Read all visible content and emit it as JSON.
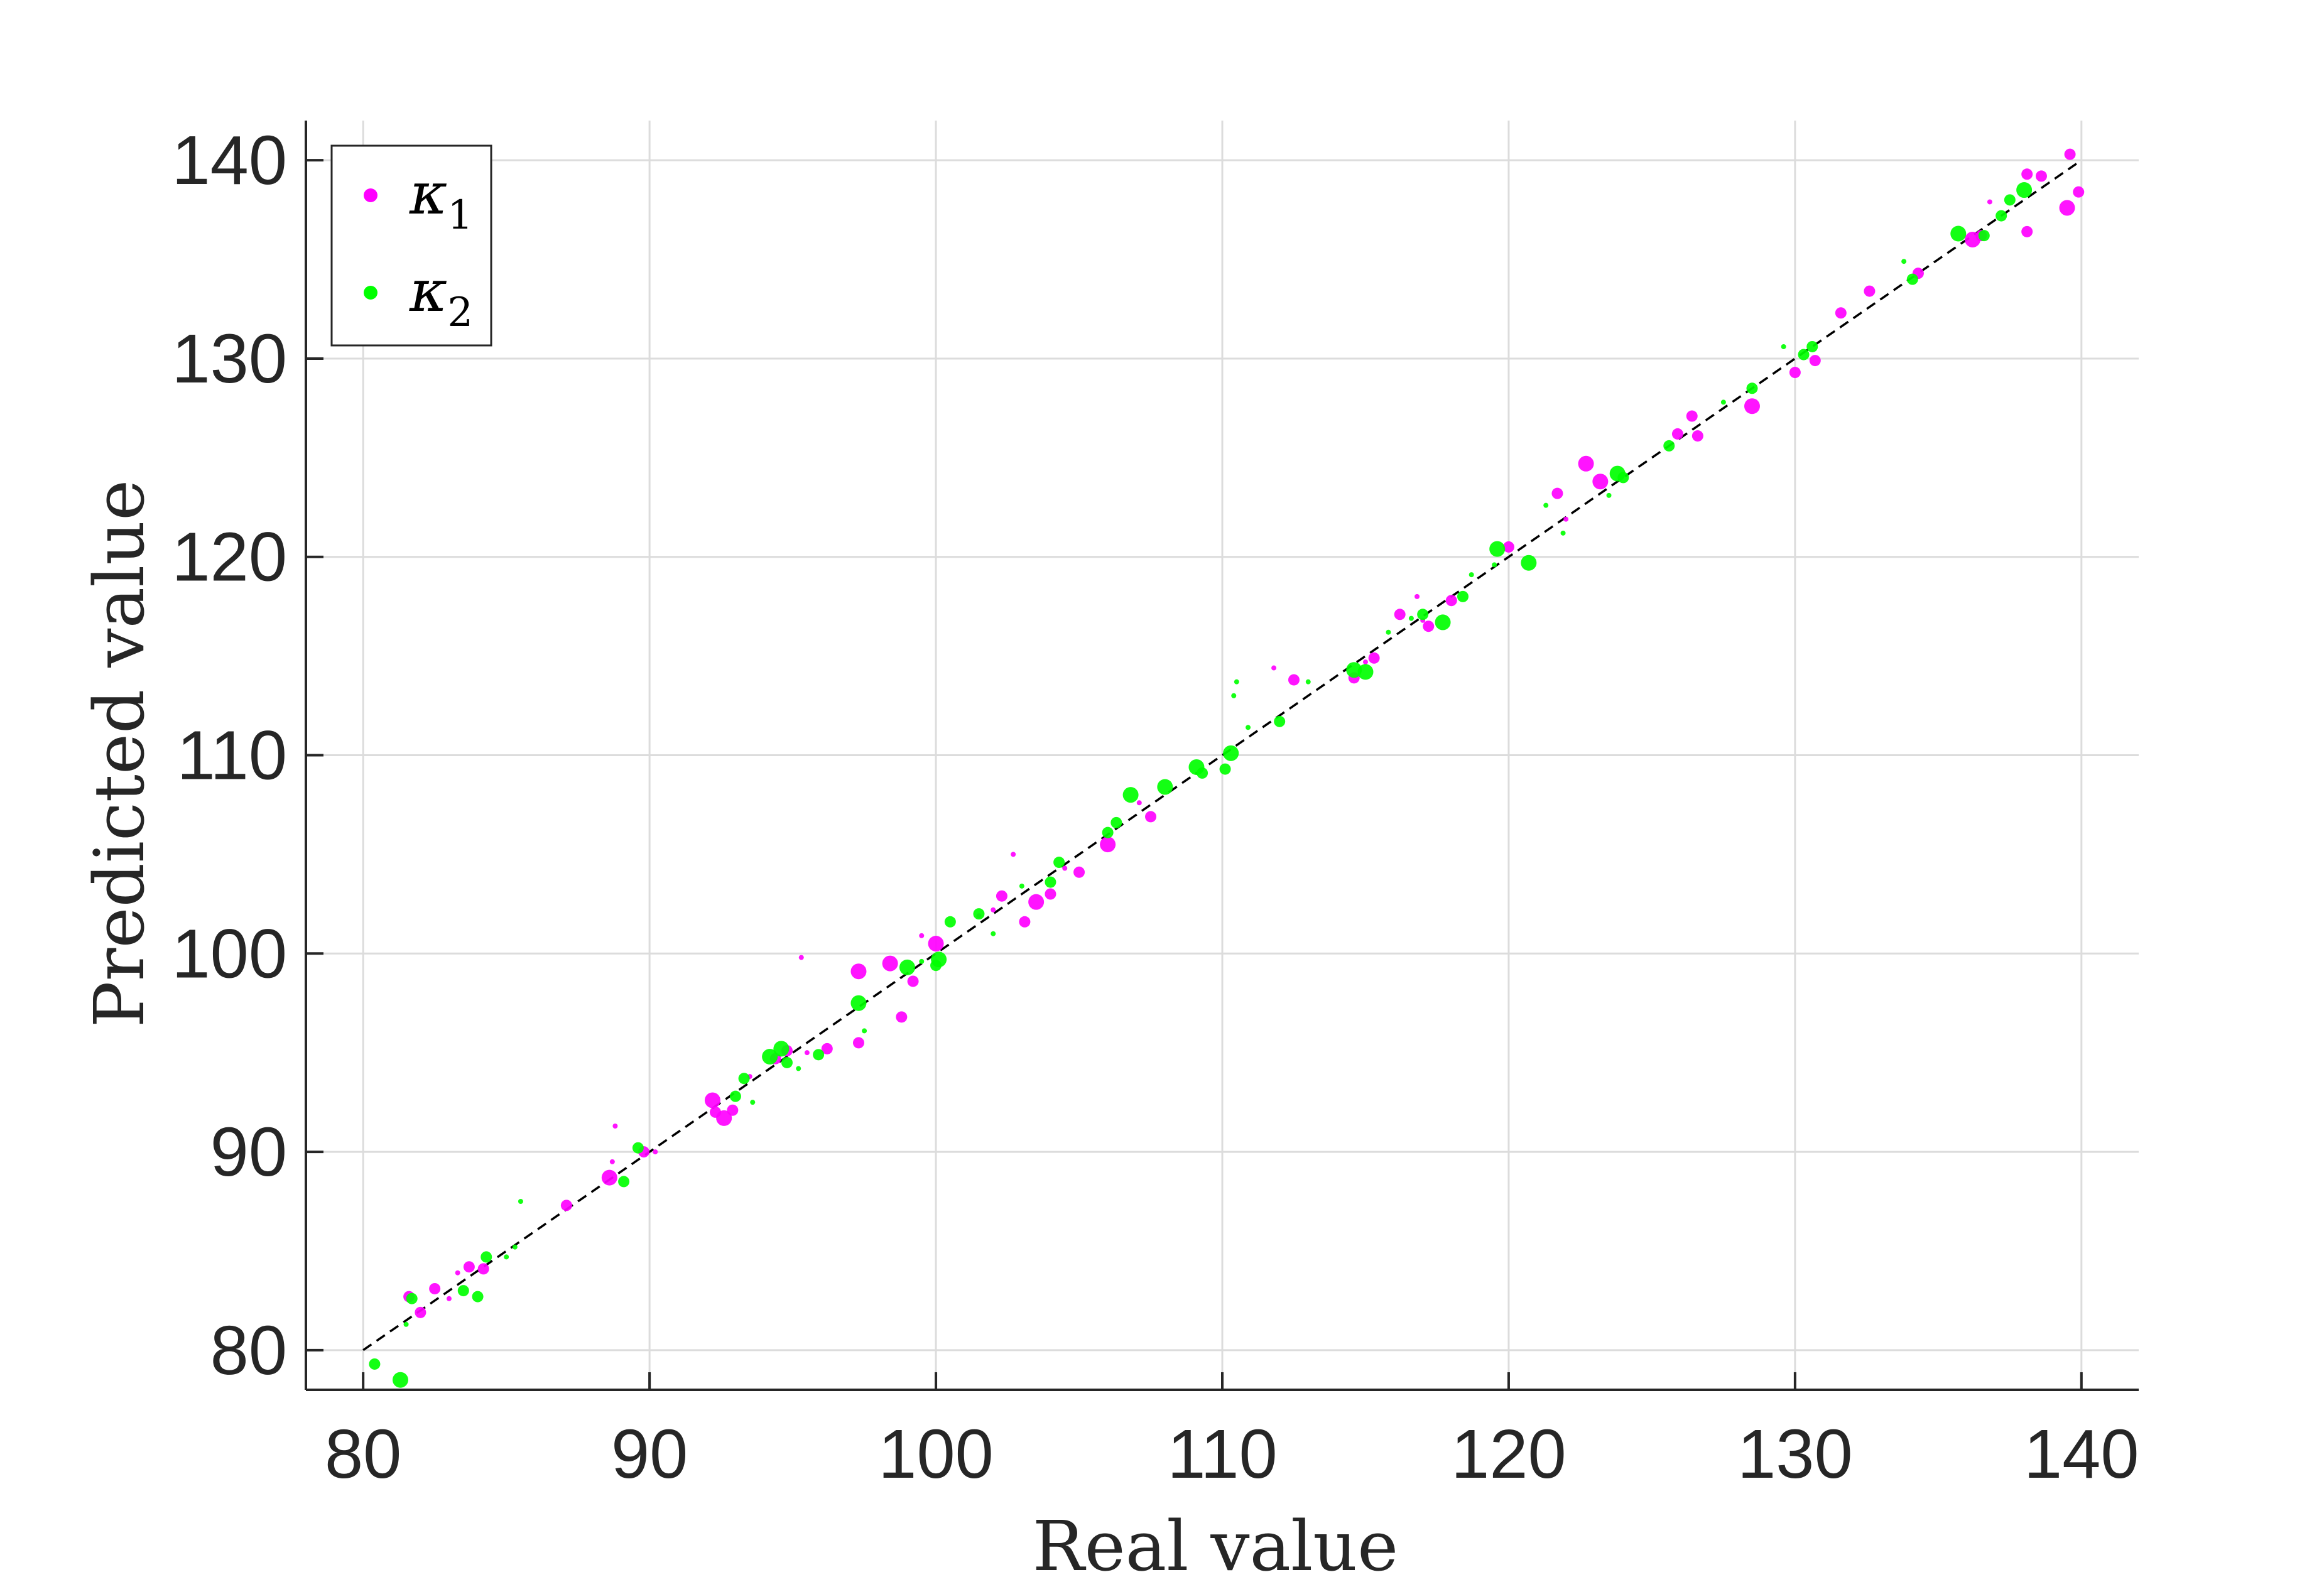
{
  "chart_data": {
    "type": "scatter",
    "title": "",
    "xlabel": "Real value",
    "ylabel": "Predicted value",
    "xlim": [
      78,
      142
    ],
    "ylim": [
      78,
      142
    ],
    "xticks": [
      80,
      90,
      100,
      110,
      120,
      130,
      140
    ],
    "yticks": [
      80,
      90,
      100,
      110,
      120,
      130,
      140
    ],
    "xtick_labels": [
      "80",
      "90",
      "100",
      "110",
      "120",
      "130",
      "140"
    ],
    "ytick_labels": [
      "80",
      "90",
      "100",
      "110",
      "120",
      "130",
      "140"
    ],
    "grid": true,
    "legend_position": "top-left",
    "reference_line": {
      "style": "dashed",
      "color": "#000000",
      "x": [
        80,
        140
      ],
      "y": [
        80,
        140
      ]
    },
    "series": [
      {
        "name": "κ1",
        "label_base": "κ",
        "label_sub": "1",
        "color": "#ff00ff",
        "points": [
          [
            81.6,
            82.7,
            2
          ],
          [
            82.0,
            81.9,
            2
          ],
          [
            82.5,
            83.1,
            2
          ],
          [
            83.0,
            82.6,
            1
          ],
          [
            83.3,
            83.9,
            1
          ],
          [
            83.7,
            84.2,
            2
          ],
          [
            84.2,
            84.1,
            2
          ],
          [
            87.1,
            87.3,
            2
          ],
          [
            88.6,
            88.7,
            3
          ],
          [
            88.8,
            91.3,
            1
          ],
          [
            88.7,
            89.5,
            1
          ],
          [
            89.8,
            90.0,
            2
          ],
          [
            90.2,
            90.0,
            1
          ],
          [
            92.2,
            92.6,
            3
          ],
          [
            92.3,
            92.0,
            2
          ],
          [
            92.6,
            91.7,
            3
          ],
          [
            92.9,
            92.1,
            2
          ],
          [
            93.5,
            93.8,
            1
          ],
          [
            94.4,
            94.7,
            2
          ],
          [
            94.8,
            95.1,
            2
          ],
          [
            95.3,
            99.8,
            1
          ],
          [
            95.5,
            95.0,
            1
          ],
          [
            96.2,
            95.2,
            2
          ],
          [
            97.3,
            99.1,
            3
          ],
          [
            97.3,
            95.5,
            2
          ],
          [
            98.4,
            99.5,
            3
          ],
          [
            98.8,
            96.8,
            2
          ],
          [
            99.2,
            98.6,
            2
          ],
          [
            99.5,
            100.9,
            1
          ],
          [
            100.0,
            100.5,
            3
          ],
          [
            101.5,
            101.9,
            1
          ],
          [
            102.0,
            102.2,
            1
          ],
          [
            102.3,
            102.9,
            2
          ],
          [
            102.7,
            105.0,
            1
          ],
          [
            103.1,
            101.6,
            2
          ],
          [
            103.5,
            102.6,
            3
          ],
          [
            104.0,
            103.0,
            2
          ],
          [
            104.5,
            104.3,
            1
          ],
          [
            105.0,
            104.1,
            2
          ],
          [
            106.0,
            105.5,
            3
          ],
          [
            107.1,
            107.6,
            1
          ],
          [
            107.5,
            106.9,
            2
          ],
          [
            111.8,
            114.4,
            1
          ],
          [
            112.5,
            113.8,
            2
          ],
          [
            114.6,
            113.9,
            2
          ],
          [
            115.0,
            114.7,
            1
          ],
          [
            115.3,
            114.9,
            2
          ],
          [
            116.2,
            117.1,
            2
          ],
          [
            116.8,
            118.0,
            1
          ],
          [
            117.0,
            116.8,
            1
          ],
          [
            117.2,
            116.5,
            2
          ],
          [
            118.0,
            117.8,
            2
          ],
          [
            120.0,
            120.5,
            2
          ],
          [
            121.7,
            123.2,
            2
          ],
          [
            122.0,
            121.9,
            1
          ],
          [
            122.7,
            124.7,
            3
          ],
          [
            123.2,
            123.8,
            3
          ],
          [
            125.9,
            126.2,
            2
          ],
          [
            126.4,
            127.1,
            2
          ],
          [
            126.6,
            126.1,
            2
          ],
          [
            128.5,
            127.6,
            3
          ],
          [
            130.0,
            129.3,
            2
          ],
          [
            130.7,
            129.9,
            2
          ],
          [
            131.6,
            132.3,
            2
          ],
          [
            132.6,
            133.4,
            2
          ],
          [
            134.3,
            134.3,
            2
          ],
          [
            136.2,
            136.0,
            3
          ],
          [
            136.5,
            136.2,
            2
          ],
          [
            136.8,
            137.9,
            1
          ],
          [
            138.1,
            136.4,
            2
          ],
          [
            138.1,
            139.3,
            2
          ],
          [
            138.6,
            139.2,
            2
          ],
          [
            139.5,
            137.6,
            3
          ],
          [
            139.6,
            140.3,
            2
          ],
          [
            139.9,
            138.4,
            2
          ]
        ]
      },
      {
        "name": "κ2",
        "label_base": "κ",
        "label_sub": "2",
        "color": "#00ff00",
        "points": [
          [
            80.4,
            79.3,
            2
          ],
          [
            81.3,
            78.5,
            3
          ],
          [
            81.5,
            81.3,
            1
          ],
          [
            81.7,
            82.6,
            2
          ],
          [
            83.5,
            83.0,
            2
          ],
          [
            84.0,
            82.7,
            2
          ],
          [
            84.3,
            84.7,
            2
          ],
          [
            85.0,
            84.7,
            1
          ],
          [
            85.5,
            87.5,
            1
          ],
          [
            85.3,
            85.2,
            1
          ],
          [
            89.1,
            88.5,
            2
          ],
          [
            89.6,
            90.2,
            2
          ],
          [
            93.0,
            92.8,
            2
          ],
          [
            93.3,
            93.7,
            2
          ],
          [
            93.6,
            92.5,
            1
          ],
          [
            94.2,
            94.8,
            3
          ],
          [
            94.6,
            95.2,
            3
          ],
          [
            94.8,
            94.5,
            2
          ],
          [
            95.2,
            94.2,
            1
          ],
          [
            95.9,
            94.9,
            2
          ],
          [
            97.3,
            97.5,
            3
          ],
          [
            97.5,
            96.1,
            1
          ],
          [
            99.0,
            99.3,
            3
          ],
          [
            99.5,
            99.6,
            1
          ],
          [
            100.1,
            99.7,
            3
          ],
          [
            100.0,
            99.4,
            2
          ],
          [
            100.5,
            101.6,
            2
          ],
          [
            101.5,
            102.0,
            2
          ],
          [
            102.0,
            101.0,
            1
          ],
          [
            103.0,
            103.4,
            1
          ],
          [
            104.0,
            103.6,
            2
          ],
          [
            104.3,
            104.6,
            2
          ],
          [
            106.0,
            106.1,
            2
          ],
          [
            106.3,
            106.6,
            2
          ],
          [
            106.8,
            108.0,
            3
          ],
          [
            108.0,
            108.4,
            3
          ],
          [
            109.1,
            109.4,
            3
          ],
          [
            109.3,
            109.1,
            2
          ],
          [
            110.1,
            109.3,
            2
          ],
          [
            110.3,
            110.1,
            3
          ],
          [
            110.5,
            113.7,
            1
          ],
          [
            110.4,
            113.0,
            1
          ],
          [
            110.9,
            111.4,
            1
          ],
          [
            112.0,
            111.7,
            2
          ],
          [
            113.0,
            113.7,
            1
          ],
          [
            114.6,
            114.3,
            3
          ],
          [
            115.0,
            114.2,
            3
          ],
          [
            115.8,
            116.2,
            1
          ],
          [
            116.6,
            116.9,
            1
          ],
          [
            117.0,
            117.1,
            2
          ],
          [
            117.7,
            116.7,
            3
          ],
          [
            118.4,
            118.0,
            2
          ],
          [
            118.7,
            119.1,
            1
          ],
          [
            119.6,
            120.4,
            3
          ],
          [
            119.5,
            119.6,
            1
          ],
          [
            120.7,
            119.7,
            3
          ],
          [
            121.3,
            122.6,
            1
          ],
          [
            121.9,
            121.2,
            1
          ],
          [
            123.5,
            123.1,
            1
          ],
          [
            123.8,
            124.2,
            3
          ],
          [
            124.0,
            124.0,
            2
          ],
          [
            125.6,
            125.6,
            2
          ],
          [
            127.5,
            127.8,
            1
          ],
          [
            128.5,
            128.5,
            2
          ],
          [
            129.6,
            130.6,
            1
          ],
          [
            130.3,
            130.2,
            2
          ],
          [
            130.6,
            130.6,
            2
          ],
          [
            133.8,
            134.9,
            1
          ],
          [
            134.1,
            134.0,
            2
          ],
          [
            135.7,
            136.3,
            3
          ],
          [
            136.6,
            136.2,
            2
          ],
          [
            137.2,
            137.2,
            2
          ],
          [
            137.5,
            138.0,
            2
          ],
          [
            138.0,
            138.5,
            3
          ]
        ]
      }
    ]
  }
}
